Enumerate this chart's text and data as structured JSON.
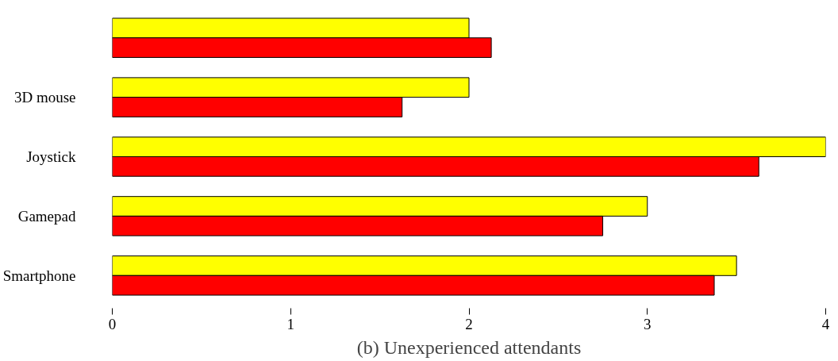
{
  "chart_data": {
    "type": "bar",
    "orientation": "horizontal",
    "title": "(b) Unexperienced attendants",
    "categories": [
      null,
      "3D mouse",
      "Joystick",
      "Gamepad",
      "Smartphone"
    ],
    "series": [
      {
        "color": "#ffff00",
        "values": [
          2,
          2,
          4,
          3,
          3.5
        ]
      },
      {
        "color": "#ff0000",
        "values": [
          2.125,
          1.625,
          3.625,
          2.75,
          3.375
        ]
      }
    ],
    "xlim": [
      0,
      4
    ],
    "xticks": [
      0,
      1,
      2,
      3,
      4
    ],
    "grid": false
  }
}
